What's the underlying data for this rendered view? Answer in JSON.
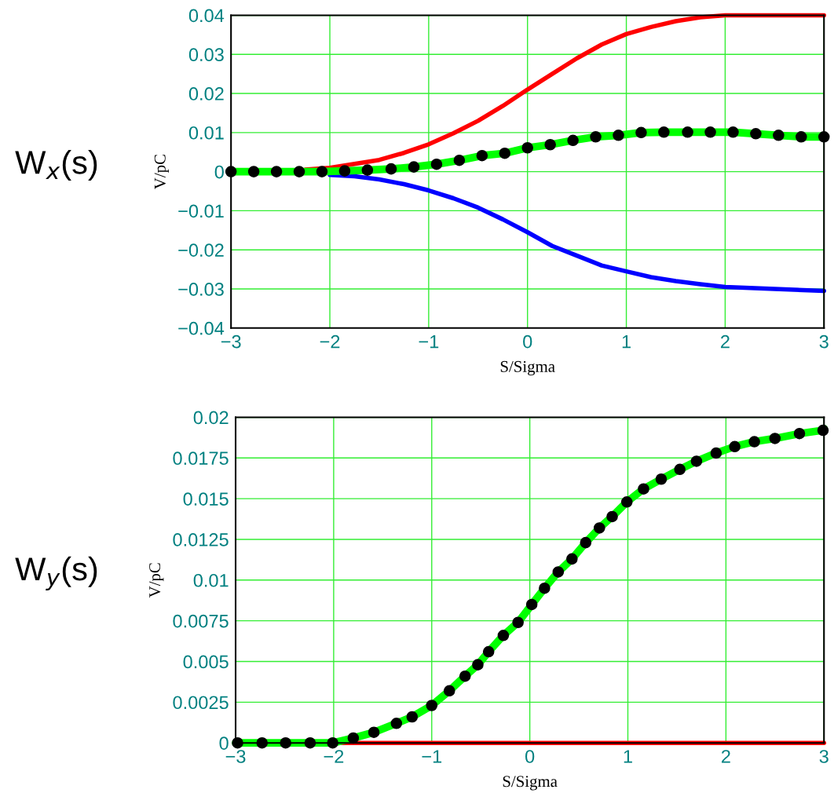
{
  "chart_data": [
    {
      "type": "line",
      "xlabel": "S/Sigma",
      "ylabel": "V/pC",
      "annotations": [
        "W$_{x}$(s)"
      ],
      "grid": true,
      "legend": false,
      "line_style": "solid",
      "xlim": [
        -3,
        3
      ],
      "xticks": [
        {
          "value": -3,
          "label": "−3"
        },
        {
          "value": -2,
          "label": "−2"
        },
        {
          "value": -1,
          "label": "−1"
        },
        0,
        1,
        2,
        3
      ],
      "ylim": [
        -0.04,
        0.04
      ],
      "yticks": [
        {
          "value": -0.04,
          "label": "−0.04"
        },
        {
          "value": -0.03,
          "label": "−0.03"
        },
        {
          "value": -0.02,
          "label": "−0.02"
        },
        {
          "value": -0.01,
          "label": "−0.01"
        },
        0,
        0.01,
        0.02,
        0.03,
        0.04
      ],
      "series": [
        {
          "color": "#ff0000",
          "x": [
            -2.25,
            -2,
            -1.75,
            -1.5,
            -1.25,
            -1,
            -0.75,
            -0.5,
            -0.25,
            0,
            0.25,
            0.5,
            0.75,
            1,
            1.25,
            1.5,
            1.75,
            2,
            2.5,
            3
          ],
          "values": [
            0.0005,
            0.001,
            0.002,
            0.003,
            0.0048,
            0.007,
            0.0098,
            0.013,
            0.0168,
            0.021,
            0.025,
            0.029,
            0.0325,
            0.0352,
            0.037,
            0.0385,
            0.0395,
            0.04,
            0.04,
            0.04
          ]
        },
        {
          "color": "#0000ff",
          "x": [
            -2,
            -1.75,
            -1.5,
            -1.25,
            -1,
            -0.75,
            -0.5,
            -0.25,
            0,
            0.25,
            0.5,
            0.75,
            1,
            1.25,
            1.5,
            1.75,
            2,
            2.5,
            3
          ],
          "values": [
            -0.0008,
            -0.0012,
            -0.002,
            -0.0032,
            -0.0048,
            -0.0068,
            -0.0092,
            -0.0122,
            -0.0155,
            -0.019,
            -0.0215,
            -0.024,
            -0.0255,
            -0.027,
            -0.028,
            -0.0288,
            -0.0295,
            -0.03,
            -0.0305
          ]
        },
        {
          "color": "#00ff00",
          "x": [
            -3,
            -2.77,
            -2.54,
            -2.31,
            -2.08,
            -1.85,
            -1.62,
            -1.38,
            -1.15,
            -0.92,
            -0.69,
            -0.46,
            -0.23,
            0,
            0.23,
            0.46,
            0.69,
            0.92,
            1.15,
            1.38,
            1.62,
            1.85,
            2.08,
            2.31,
            2.54,
            2.77,
            3
          ],
          "values": [
            0,
            0,
            0,
            0,
            0,
            0.0002,
            0.0004,
            0.0007,
            0.0012,
            0.0019,
            0.0029,
            0.0041,
            0.0047,
            0.0061,
            0.0069,
            0.008,
            0.0089,
            0.0093,
            0.01,
            0.0101,
            0.0101,
            0.0101,
            0.0101,
            0.0097,
            0.0093,
            0.0089,
            0.0089
          ]
        },
        {
          "type": "scatter",
          "marker": "circle",
          "color": "#000000",
          "x": [
            -3,
            -2.77,
            -2.54,
            -2.31,
            -2.08,
            -1.85,
            -1.62,
            -1.38,
            -1.15,
            -0.92,
            -0.69,
            -0.46,
            -0.23,
            0,
            0.23,
            0.46,
            0.69,
            0.92,
            1.15,
            1.38,
            1.62,
            1.85,
            2.08,
            2.31,
            2.54,
            2.77,
            3
          ],
          "values": [
            0,
            0,
            0,
            0,
            0,
            0.0002,
            0.0004,
            0.0007,
            0.0012,
            0.0019,
            0.0029,
            0.0041,
            0.0047,
            0.0061,
            0.0069,
            0.008,
            0.0089,
            0.0093,
            0.01,
            0.0101,
            0.0101,
            0.0101,
            0.0101,
            0.0097,
            0.0093,
            0.0089,
            0.0089
          ]
        }
      ]
    },
    {
      "type": "line",
      "xlabel": "S/Sigma",
      "ylabel": "V/pC",
      "annotations": [
        "W$_{y}$(s)"
      ],
      "grid": true,
      "legend": false,
      "line_style": "solid",
      "xlim": [
        -3,
        3
      ],
      "xticks": [
        {
          "value": -3,
          "label": "−3"
        },
        {
          "value": -2,
          "label": "−2"
        },
        {
          "value": -1,
          "label": "−1"
        },
        0,
        1,
        2,
        3
      ],
      "ylim": [
        0,
        0.02
      ],
      "yticks": [
        0,
        0.0025,
        0.005,
        0.0075,
        0.01,
        0.0125,
        0.015,
        0.0175,
        0.02
      ],
      "series": [
        {
          "color": "#ff0000",
          "x": [
            -3,
            3
          ],
          "values": [
            0,
            0
          ]
        },
        {
          "color": "#00ff00",
          "x": [
            -3,
            -2.73,
            -2.49,
            -2.24,
            -2.01,
            -1.8,
            -1.59,
            -1.36,
            -1.2,
            -1,
            -0.82,
            -0.66,
            -0.53,
            -0.42,
            -0.27,
            -0.12,
            0.02,
            0.15,
            0.29,
            0.43,
            0.57,
            0.71,
            0.84,
            0.99,
            1.16,
            1.34,
            1.53,
            1.7,
            1.9,
            2.09,
            2.29,
            2.5,
            2.75,
            2.99,
            3
          ],
          "values": [
            0,
            0,
            0,
            0,
            0,
            0.0003,
            0.00065,
            0.0012,
            0.0016,
            0.0023,
            0.0032,
            0.0041,
            0.0048,
            0.0056,
            0.0066,
            0.0074,
            0.0085,
            0.0095,
            0.0105,
            0.0113,
            0.0123,
            0.0132,
            0.0139,
            0.0148,
            0.0156,
            0.0162,
            0.0168,
            0.0173,
            0.0178,
            0.0182,
            0.0185,
            0.0187,
            0.019,
            0.0192,
            0.0193
          ]
        },
        {
          "type": "scatter",
          "marker": "circle",
          "color": "#000000",
          "x": [
            -2.98,
            -2.73,
            -2.49,
            -2.24,
            -2.01,
            -1.8,
            -1.59,
            -1.36,
            -1.2,
            -1,
            -0.82,
            -0.66,
            -0.53,
            -0.42,
            -0.27,
            -0.12,
            0.02,
            0.15,
            0.29,
            0.43,
            0.57,
            0.71,
            0.84,
            0.99,
            1.16,
            1.34,
            1.53,
            1.7,
            1.9,
            2.09,
            2.29,
            2.5,
            2.75,
            2.99
          ],
          "values": [
            0,
            0,
            0,
            0,
            0,
            0.0003,
            0.00065,
            0.0012,
            0.0016,
            0.0023,
            0.0032,
            0.0041,
            0.0048,
            0.0056,
            0.0066,
            0.0074,
            0.0085,
            0.0095,
            0.0105,
            0.0113,
            0.0123,
            0.0132,
            0.0139,
            0.0148,
            0.0156,
            0.0162,
            0.0168,
            0.0173,
            0.0178,
            0.0182,
            0.0185,
            0.0187,
            0.019,
            0.0192
          ]
        }
      ]
    }
  ]
}
